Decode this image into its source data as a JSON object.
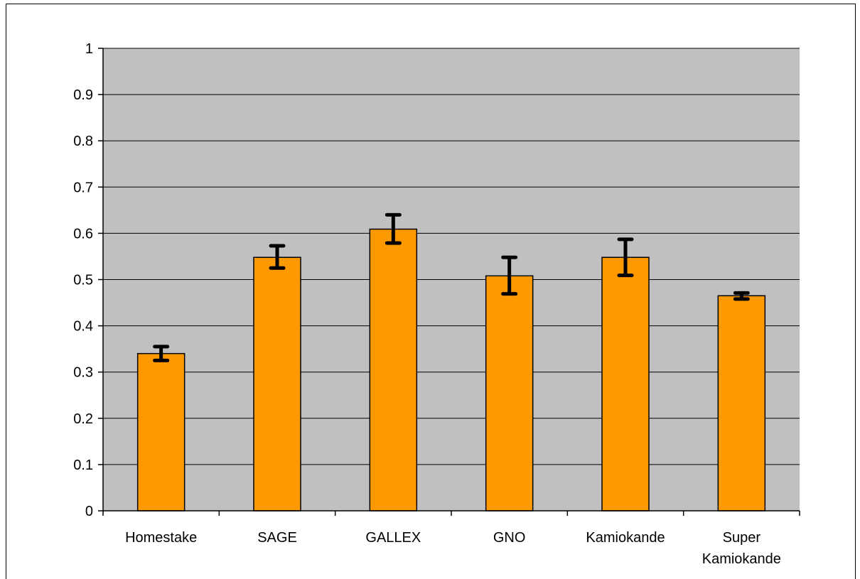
{
  "chart_data": {
    "type": "bar",
    "categories": [
      [
        "Homestake"
      ],
      [
        "SAGE"
      ],
      [
        "GALLEX"
      ],
      [
        "GNO"
      ],
      [
        "Kamiokande"
      ],
      [
        "Super",
        "Kamiokande"
      ]
    ],
    "values": [
      0.34,
      0.548,
      0.609,
      0.508,
      0.548,
      0.465
    ],
    "errors": [
      [
        0.325,
        0.355
      ],
      [
        0.525,
        0.573
      ],
      [
        0.579,
        0.64
      ],
      [
        0.469,
        0.548
      ],
      [
        0.509,
        0.587
      ],
      [
        0.458,
        0.471
      ]
    ],
    "ylim": [
      0,
      1
    ],
    "yticks": [
      "0",
      "0.1",
      "0.2",
      "0.3",
      "0.4",
      "0.5",
      "0.6",
      "0.7",
      "0.8",
      "0.9",
      "1"
    ],
    "grid": true,
    "colors": {
      "bar": "#ff9900",
      "plot_background": "#c0c0c0",
      "gridline": "#000000",
      "error_bar": "#000000"
    }
  }
}
